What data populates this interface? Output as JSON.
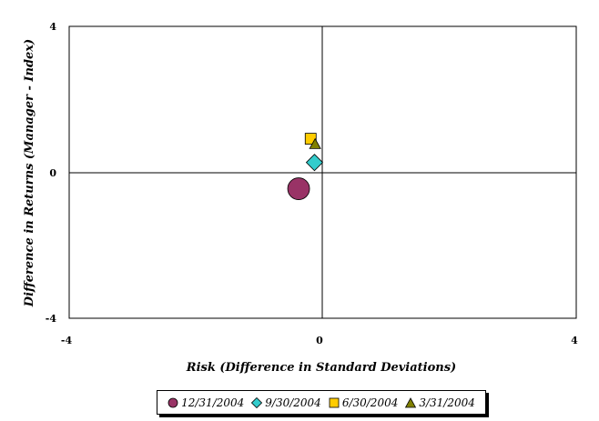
{
  "chart_data": {
    "type": "scatter",
    "title": "",
    "xlabel": "Risk (Difference in Standard Deviations)",
    "ylabel": "Difference in Returns (Manager - Index)",
    "xlim": [
      -4,
      4
    ],
    "ylim": [
      -4,
      4
    ],
    "x_tick_labels": [
      "-4",
      "0",
      "4"
    ],
    "y_tick_labels": [
      "4",
      "0",
      "-4"
    ],
    "grid": false,
    "legend_position": "bottom",
    "series": [
      {
        "name": "12/31/2004",
        "marker": "circle",
        "color": "#993366",
        "x": [
          -0.38
        ],
        "y": [
          -0.45
        ]
      },
      {
        "name": "9/30/2004",
        "marker": "diamond",
        "color": "#33CCCC",
        "x": [
          -0.13
        ],
        "y": [
          0.27
        ]
      },
      {
        "name": "6/30/2004",
        "marker": "square",
        "color": "#FFCC00",
        "x": [
          -0.19
        ],
        "y": [
          0.92
        ]
      },
      {
        "name": "3/31/2004",
        "marker": "triangle",
        "color": "#808000",
        "x": [
          -0.12
        ],
        "y": [
          0.77
        ]
      }
    ]
  }
}
